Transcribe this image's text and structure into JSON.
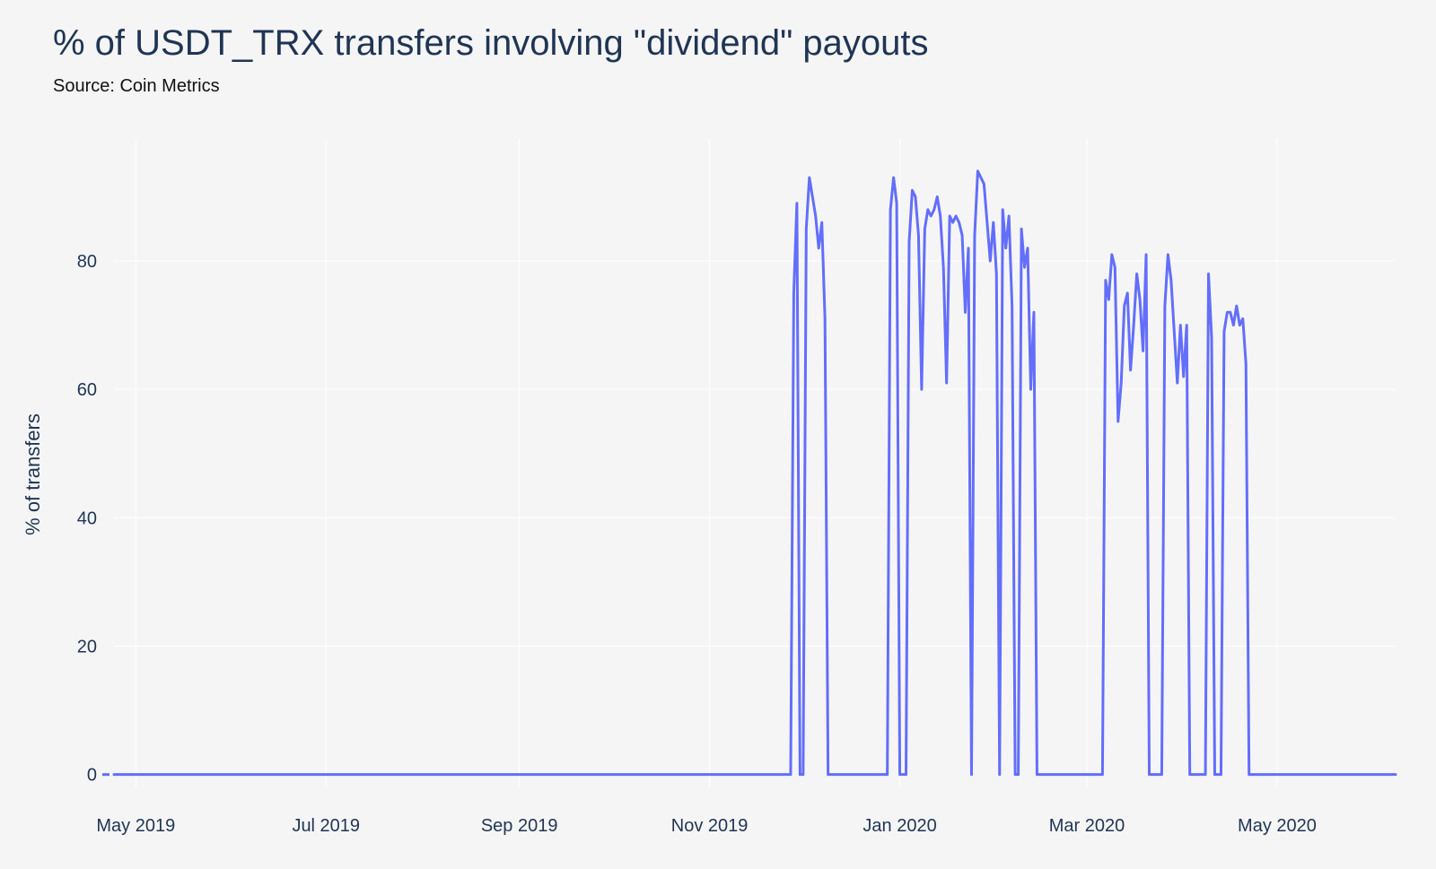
{
  "title": "% of USDT_TRX transfers involving \"dividend\" payouts",
  "subtitle": "Source: Coin Metrics",
  "colors": {
    "line": "#636efa",
    "grid": "#ffffff",
    "background": "#f5f5f6",
    "text": "#1f3553"
  },
  "chart_data": {
    "type": "line",
    "title": "% of USDT_TRX transfers involving \"dividend\" payouts",
    "xlabel": "",
    "ylabel": "% of transfers",
    "xlim": [
      "2019-04-24",
      "2020-06-08"
    ],
    "ylim": [
      -2,
      99
    ],
    "y_ticks": [
      0,
      20,
      40,
      60,
      80
    ],
    "x_ticks": [
      {
        "date": "2019-05-01",
        "label": "May 2019"
      },
      {
        "date": "2019-07-01",
        "label": "Jul 2019"
      },
      {
        "date": "2019-09-01",
        "label": "Sep 2019"
      },
      {
        "date": "2019-11-01",
        "label": "Nov 2019"
      },
      {
        "date": "2020-01-01",
        "label": "Jan 2020"
      },
      {
        "date": "2020-03-01",
        "label": "Mar 2020"
      },
      {
        "date": "2020-05-01",
        "label": "May 2020"
      }
    ],
    "grid": true,
    "series": [
      {
        "name": "",
        "x": [
          "2019-04-24",
          "2019-11-27",
          "2019-11-28",
          "2019-11-29",
          "2019-11-30",
          "2019-12-01",
          "2019-12-02",
          "2019-12-03",
          "2019-12-04",
          "2019-12-05",
          "2019-12-06",
          "2019-12-07",
          "2019-12-08",
          "2019-12-09",
          "2019-12-10",
          "2019-12-11",
          "2019-12-28",
          "2019-12-29",
          "2019-12-30",
          "2019-12-31",
          "2020-01-01",
          "2020-01-02",
          "2020-01-03",
          "2020-01-04",
          "2020-01-05",
          "2020-01-06",
          "2020-01-07",
          "2020-01-08",
          "2020-01-09",
          "2020-01-10",
          "2020-01-11",
          "2020-01-12",
          "2020-01-13",
          "2020-01-14",
          "2020-01-15",
          "2020-01-16",
          "2020-01-17",
          "2020-01-18",
          "2020-01-19",
          "2020-01-20",
          "2020-01-21",
          "2020-01-22",
          "2020-01-23",
          "2020-01-24",
          "2020-01-25",
          "2020-01-26",
          "2020-01-27",
          "2020-01-28",
          "2020-01-29",
          "2020-01-30",
          "2020-01-31",
          "2020-02-01",
          "2020-02-02",
          "2020-02-03",
          "2020-02-04",
          "2020-02-05",
          "2020-02-06",
          "2020-02-07",
          "2020-02-08",
          "2020-02-09",
          "2020-02-10",
          "2020-02-11",
          "2020-02-12",
          "2020-02-13",
          "2020-02-14",
          "2020-02-15",
          "2020-02-16",
          "2020-02-17",
          "2020-02-18",
          "2020-02-19",
          "2020-03-06",
          "2020-03-07",
          "2020-03-08",
          "2020-03-09",
          "2020-03-10",
          "2020-03-11",
          "2020-03-12",
          "2020-03-13",
          "2020-03-14",
          "2020-03-15",
          "2020-03-16",
          "2020-03-17",
          "2020-03-18",
          "2020-03-19",
          "2020-03-20",
          "2020-03-21",
          "2020-03-22",
          "2020-03-23",
          "2020-03-24",
          "2020-03-25",
          "2020-03-26",
          "2020-03-27",
          "2020-03-28",
          "2020-03-29",
          "2020-03-30",
          "2020-03-31",
          "2020-04-01",
          "2020-04-02",
          "2020-04-03",
          "2020-04-04",
          "2020-04-05",
          "2020-04-06",
          "2020-04-07",
          "2020-04-08",
          "2020-04-09",
          "2020-04-10",
          "2020-04-11",
          "2020-04-12",
          "2020-04-13",
          "2020-04-14",
          "2020-04-15",
          "2020-04-16",
          "2020-04-17",
          "2020-04-18",
          "2020-04-19",
          "2020-04-20",
          "2020-04-21",
          "2020-04-22",
          "2020-04-23",
          "2020-04-24",
          "2020-04-25",
          "2020-06-08"
        ],
        "y": [
          0,
          0,
          75,
          89,
          0,
          0,
          85,
          93,
          90,
          87,
          82,
          86,
          71,
          0,
          0,
          0,
          0,
          88,
          93,
          89,
          0,
          0,
          0,
          83,
          91,
          90,
          84,
          60,
          85,
          88,
          87,
          88,
          90,
          87,
          79,
          61,
          87,
          86,
          87,
          86,
          84,
          72,
          82,
          0,
          84,
          94,
          93,
          92,
          86,
          80,
          86,
          78,
          0,
          88,
          82,
          87,
          73,
          0,
          0,
          85,
          79,
          82,
          60,
          72,
          0,
          0,
          0,
          0,
          0,
          0,
          0,
          77,
          74,
          81,
          79,
          55,
          61,
          73,
          75,
          63,
          70,
          78,
          74,
          66,
          81,
          0,
          0,
          0,
          0,
          0,
          73,
          81,
          77,
          69,
          61,
          70,
          62,
          70,
          0,
          0,
          0,
          0,
          0,
          0,
          78,
          68,
          0,
          0,
          0,
          69,
          72,
          72,
          70,
          73,
          70,
          71,
          64,
          0,
          0,
          0,
          0,
          0
        ]
      }
    ]
  }
}
